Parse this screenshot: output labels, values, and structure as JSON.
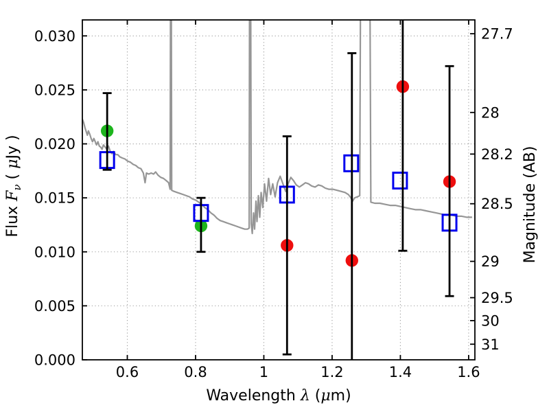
{
  "figure": {
    "background": "#ffffff",
    "description": "Spectral energy distribution: model spectrum with photometric points and error bars"
  },
  "chart_data": {
    "type": "line",
    "title": "",
    "xlabel": "Wavelength λ (μm)",
    "xlabel_parts": [
      {
        "t": "Wavelength  ",
        "f": "plain"
      },
      {
        "t": "λ",
        "f": "math"
      },
      {
        "t": " (",
        "f": "plain"
      },
      {
        "t": "μ",
        "f": "math"
      },
      {
        "t": "m)",
        "f": "plain"
      }
    ],
    "ylabel": "Flux Fν ( μJy )",
    "ylabel_parts": [
      {
        "t": "Flux  ",
        "f": "plain"
      },
      {
        "t": "F",
        "f": "math"
      },
      {
        "t": "ν",
        "f": "mathsub"
      },
      {
        "t": "  ( ",
        "f": "plain"
      },
      {
        "t": "μ",
        "f": "math"
      },
      {
        "t": "Jy )",
        "f": "plain"
      }
    ],
    "y2label": "Magnitude (AB)",
    "xlim": [
      0.4683,
      1.6183
    ],
    "ylim": [
      0.0,
      0.03148
    ],
    "grid": true,
    "legend": "none",
    "x_ticks": [
      0.6,
      0.8,
      1.0,
      1.2,
      1.4,
      1.6
    ],
    "x_tick_labels": [
      "0.6",
      "0.8",
      "1",
      "1.2",
      "1.4",
      "1.6"
    ],
    "y_ticks": [
      0.0,
      0.005,
      0.01,
      0.015,
      0.02,
      0.025,
      0.03
    ],
    "y_tick_labels": [
      "0.000",
      "0.005",
      "0.010",
      "0.015",
      "0.020",
      "0.025",
      "0.030"
    ],
    "y2_ticks": [
      27.7,
      28.0,
      28.2,
      28.5,
      29.0,
      29.5,
      30.0,
      31.0
    ],
    "y2_tick_labels": [
      "27.7",
      "28",
      "28.2",
      "28.5",
      "29",
      "29.5",
      "30",
      "31"
    ],
    "ab_zeropoint_ujy": 23.9,
    "colors": {
      "spectrum": "#969696",
      "green": "#1db51d",
      "red": "#ee0e0e",
      "blue": "#0000ee",
      "errorbar": "#000000",
      "grid": "#9b9b9b",
      "axis": "#000000"
    },
    "series": [
      {
        "name": "model-spectrum",
        "kind": "line",
        "color_key": "spectrum",
        "points": [
          [
            0.468,
            0.0223
          ],
          [
            0.472,
            0.022
          ],
          [
            0.476,
            0.0215
          ],
          [
            0.48,
            0.0211
          ],
          [
            0.483,
            0.0208
          ],
          [
            0.486,
            0.0212
          ],
          [
            0.49,
            0.0209
          ],
          [
            0.494,
            0.0205
          ],
          [
            0.498,
            0.0202
          ],
          [
            0.502,
            0.0205
          ],
          [
            0.506,
            0.0202
          ],
          [
            0.51,
            0.0199
          ],
          [
            0.514,
            0.0202
          ],
          [
            0.518,
            0.0198
          ],
          [
            0.522,
            0.0197
          ],
          [
            0.526,
            0.0195
          ],
          [
            0.53,
            0.0199
          ],
          [
            0.535,
            0.0197
          ],
          [
            0.54,
            0.0195
          ],
          [
            0.545,
            0.0198
          ],
          [
            0.55,
            0.0193
          ],
          [
            0.555,
            0.0191
          ],
          [
            0.56,
            0.0193
          ],
          [
            0.566,
            0.019
          ],
          [
            0.572,
            0.019
          ],
          [
            0.578,
            0.0188
          ],
          [
            0.585,
            0.0187
          ],
          [
            0.593,
            0.0186
          ],
          [
            0.601,
            0.0184
          ],
          [
            0.609,
            0.0183
          ],
          [
            0.617,
            0.0181
          ],
          [
            0.625,
            0.018
          ],
          [
            0.632,
            0.0178
          ],
          [
            0.64,
            0.0177
          ],
          [
            0.647,
            0.0173
          ],
          [
            0.652,
            0.0164
          ],
          [
            0.656,
            0.0173
          ],
          [
            0.663,
            0.0172
          ],
          [
            0.67,
            0.0173
          ],
          [
            0.677,
            0.0172
          ],
          [
            0.683,
            0.0174
          ],
          [
            0.69,
            0.0171
          ],
          [
            0.698,
            0.0169
          ],
          [
            0.706,
            0.0168
          ],
          [
            0.714,
            0.0166
          ],
          [
            0.721,
            0.0164
          ],
          [
            0.7255,
            0.0158
          ],
          [
            0.727,
            0.04
          ],
          [
            0.7285,
            0.04
          ],
          [
            0.73,
            0.0157
          ],
          [
            0.737,
            0.0156
          ],
          [
            0.746,
            0.0155
          ],
          [
            0.755,
            0.0154
          ],
          [
            0.764,
            0.0153
          ],
          [
            0.773,
            0.0152
          ],
          [
            0.782,
            0.0151
          ],
          [
            0.791,
            0.0149
          ],
          [
            0.8,
            0.0148
          ],
          [
            0.809,
            0.0146
          ],
          [
            0.818,
            0.0144
          ],
          [
            0.827,
            0.0141
          ],
          [
            0.836,
            0.0139
          ],
          [
            0.845,
            0.0136
          ],
          [
            0.854,
            0.0134
          ],
          [
            0.863,
            0.0131
          ],
          [
            0.872,
            0.0129
          ],
          [
            0.881,
            0.0128
          ],
          [
            0.89,
            0.0127
          ],
          [
            0.899,
            0.0126
          ],
          [
            0.908,
            0.0125
          ],
          [
            0.917,
            0.0124
          ],
          [
            0.926,
            0.0123
          ],
          [
            0.935,
            0.0122
          ],
          [
            0.944,
            0.0121
          ],
          [
            0.952,
            0.0121
          ],
          [
            0.957,
            0.0122
          ],
          [
            0.9585,
            0.04
          ],
          [
            0.961,
            0.04
          ],
          [
            0.963,
            0.0126
          ],
          [
            0.966,
            0.0117
          ],
          [
            0.97,
            0.0136
          ],
          [
            0.973,
            0.0121
          ],
          [
            0.977,
            0.0147
          ],
          [
            0.98,
            0.0128
          ],
          [
            0.984,
            0.0152
          ],
          [
            0.988,
            0.0132
          ],
          [
            0.992,
            0.0155
          ],
          [
            0.997,
            0.0141
          ],
          [
            1.002,
            0.0163
          ],
          [
            1.008,
            0.0147
          ],
          [
            1.014,
            0.0168
          ],
          [
            1.02,
            0.0153
          ],
          [
            1.026,
            0.0163
          ],
          [
            1.033,
            0.0151
          ],
          [
            1.04,
            0.0164
          ],
          [
            1.048,
            0.017
          ],
          [
            1.056,
            0.0163
          ],
          [
            1.064,
            0.0156
          ],
          [
            1.071,
            0.0163
          ],
          [
            1.079,
            0.0169
          ],
          [
            1.087,
            0.0166
          ],
          [
            1.095,
            0.0162
          ],
          [
            1.104,
            0.016
          ],
          [
            1.113,
            0.0162
          ],
          [
            1.122,
            0.0164
          ],
          [
            1.131,
            0.0163
          ],
          [
            1.14,
            0.0161
          ],
          [
            1.15,
            0.016
          ],
          [
            1.16,
            0.0162
          ],
          [
            1.17,
            0.0161
          ],
          [
            1.18,
            0.0159
          ],
          [
            1.19,
            0.0158
          ],
          [
            1.202,
            0.0158
          ],
          [
            1.214,
            0.0157
          ],
          [
            1.226,
            0.0156
          ],
          [
            1.238,
            0.0155
          ],
          [
            1.248,
            0.0153
          ],
          [
            1.255,
            0.015
          ],
          [
            1.26,
            0.0147
          ],
          [
            1.266,
            0.015
          ],
          [
            1.274,
            0.0151
          ],
          [
            1.281,
            0.0152
          ],
          [
            1.284,
            0.04
          ],
          [
            1.31,
            0.04
          ],
          [
            1.3135,
            0.0146
          ],
          [
            1.325,
            0.0145
          ],
          [
            1.34,
            0.0145
          ],
          [
            1.355,
            0.0144
          ],
          [
            1.37,
            0.0143
          ],
          [
            1.385,
            0.0143
          ],
          [
            1.4,
            0.0142
          ],
          [
            1.415,
            0.0141
          ],
          [
            1.43,
            0.014
          ],
          [
            1.445,
            0.0139
          ],
          [
            1.46,
            0.0139
          ],
          [
            1.475,
            0.0138
          ],
          [
            1.49,
            0.0137
          ],
          [
            1.505,
            0.0136
          ],
          [
            1.52,
            0.0135
          ],
          [
            1.535,
            0.0134
          ],
          [
            1.55,
            0.0134
          ],
          [
            1.565,
            0.0133
          ],
          [
            1.58,
            0.0133
          ],
          [
            1.595,
            0.0132
          ],
          [
            1.61,
            0.0132
          ]
        ]
      },
      {
        "name": "green-filled-circles",
        "kind": "scatter",
        "marker": "filled-circle",
        "color_key": "green",
        "points": [
          {
            "x": 0.541,
            "y": 0.0212,
            "err_plus": 0.0035,
            "err_minus": 0.0036
          },
          {
            "x": 0.816,
            "y": 0.0124,
            "err_plus": 0.0026,
            "err_minus": 0.0024
          }
        ]
      },
      {
        "name": "blue-open-squares",
        "kind": "scatter",
        "marker": "open-square",
        "color_key": "blue",
        "points": [
          {
            "x": 0.541,
            "y": 0.0185
          },
          {
            "x": 0.816,
            "y": 0.0136
          },
          {
            "x": 1.068,
            "y": 0.0153
          },
          {
            "x": 1.256,
            "y": 0.0182
          },
          {
            "x": 1.399,
            "y": 0.0166
          },
          {
            "x": 1.544,
            "y": 0.0127
          }
        ]
      },
      {
        "name": "red-filled-circles",
        "kind": "scatter",
        "marker": "filled-circle",
        "color_key": "red",
        "points": [
          {
            "x": 1.068,
            "y": 0.0106,
            "err_plus": 0.0101,
            "err_minus": 0.0101
          },
          {
            "x": 1.258,
            "y": 0.0092,
            "err_plus": 0.0192,
            "err_minus": 0.0192
          },
          {
            "x": 1.407,
            "y": 0.0253,
            "err_plus": 0.0152,
            "err_minus": 0.0152
          },
          {
            "x": 1.544,
            "y": 0.0165,
            "err_plus": 0.0107,
            "err_minus": 0.0106
          }
        ]
      }
    ]
  }
}
